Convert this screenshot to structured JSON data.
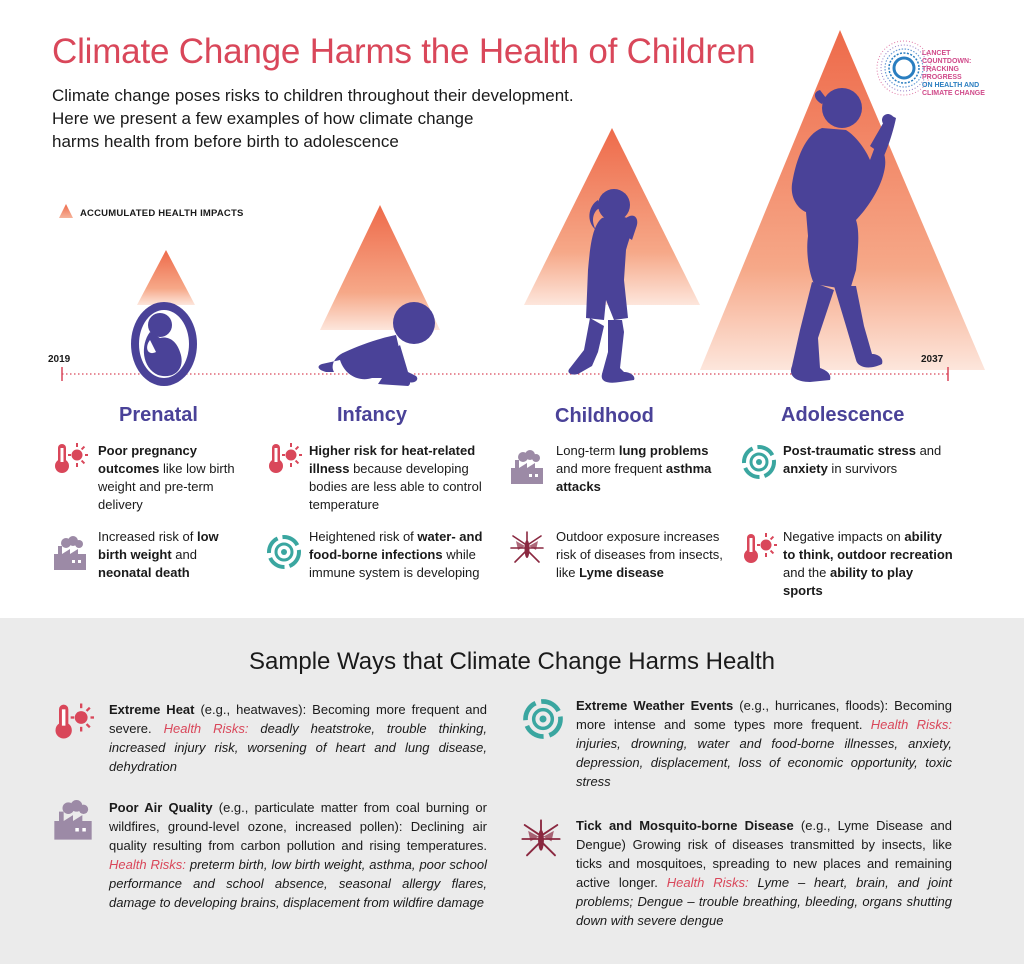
{
  "header": {
    "title": "Climate Change Harms the Health of Children",
    "intro_lines": [
      "Climate change poses risks to children throughout their development.",
      "Here we present a few examples of how climate change",
      "harms health from before birth to adolescence"
    ],
    "logo_text": [
      "LANCET COUNTDOWN:",
      "TRACKING PROGRESS",
      "ON HEALTH AND",
      "CLIMATE CHANGE"
    ]
  },
  "legend": {
    "label": "ACCUMULATED HEALTH  IMPACTS"
  },
  "timeline": {
    "start_year": "2019",
    "end_year": "2037"
  },
  "stages": [
    {
      "name": "Prenatal",
      "items": [
        {
          "icon": "thermometer-sun-icon",
          "parts": [
            [
              "Poor pregnancy outcomes",
              true
            ],
            [
              " like low birth weight  and pre-term delivery",
              false
            ]
          ]
        },
        {
          "icon": "factory-smoke-icon",
          "parts": [
            [
              "Increased risk of ",
              false
            ],
            [
              "low birth weight",
              true
            ],
            [
              " and ",
              false
            ],
            [
              "neonatal death",
              true
            ]
          ]
        }
      ]
    },
    {
      "name": "Infancy",
      "items": [
        {
          "icon": "thermometer-sun-icon",
          "parts": [
            [
              "Higher risk for heat-related illness",
              true
            ],
            [
              " because developing bodies are less able to control temperature",
              false
            ]
          ]
        },
        {
          "icon": "hurricane-icon",
          "parts": [
            [
              "Heightened risk of ",
              false
            ],
            [
              "water- and food-borne infections",
              true
            ],
            [
              " while immune system is developing",
              false
            ]
          ]
        }
      ]
    },
    {
      "name": "Childhood",
      "items": [
        {
          "icon": "factory-smoke-icon",
          "parts": [
            [
              "Long-term ",
              false
            ],
            [
              "lung problems",
              true
            ],
            [
              " and more frequent ",
              false
            ],
            [
              "asthma attacks",
              true
            ]
          ]
        },
        {
          "icon": "mosquito-icon",
          "parts": [
            [
              "Outdoor exposure increases risk of diseases from insects, like ",
              false
            ],
            [
              "Lyme disease",
              true
            ]
          ]
        }
      ]
    },
    {
      "name": "Adolescence",
      "items": [
        {
          "icon": "hurricane-icon",
          "parts": [
            [
              "Post-traumatic stress",
              true
            ],
            [
              " and ",
              false
            ],
            [
              "anxiety",
              true
            ],
            [
              " in survivors",
              false
            ]
          ]
        },
        {
          "icon": "thermometer-sun-icon",
          "parts": [
            [
              "Negative impacts on ",
              false
            ],
            [
              "ability to think, outdoor recreation",
              true
            ],
            [
              " and the ",
              false
            ],
            [
              "ability to play sports",
              true
            ]
          ]
        }
      ]
    }
  ],
  "sample": {
    "title": "Sample Ways that Climate Change Harms Health",
    "risk_label": "Health Risks:",
    "entries": [
      {
        "icon": "thermometer-sun-icon",
        "heading": "Extreme Heat",
        "lead": " (e.g., heatwaves): Becoming more frequent and severe. ",
        "risks": " deadly heatstroke, trouble thinking, increased injury risk, worsening of heart and lung disease, dehydration"
      },
      {
        "icon": "factory-smoke-icon",
        "heading": "Poor Air Quality",
        "lead": " (e.g., particulate matter from coal burning or wildfires, ground-level ozone, increased pollen): Declining air quality resulting from carbon pollution and rising temperatures. ",
        "risks": " preterm birth, low birth weight, asthma, poor school performance and school absence, seasonal allergy flares, damage to developing brains, displacement from wildfire damage"
      },
      {
        "icon": "hurricane-icon",
        "heading": "Extreme Weather Events",
        "lead": " (e.g., hurricanes, floods): Becoming more intense and some types more frequent. ",
        "risks": " injuries, drowning, water and food-borne illnesses, anxiety, depression, displacement, loss of economic opportunity, toxic stress"
      },
      {
        "icon": "mosquito-icon",
        "heading": "Tick and Mosquito-borne Disease",
        "lead": " (e.g., Lyme Disease and Dengue) Growing risk of diseases transmitted by insects, like ticks and mosquitoes, spreading to new places and remaining active longer. ",
        "risks": " Lyme – heart, brain, and joint problems; Dengue – trouble breathing, bleeding, organs shutting down with severe dengue"
      }
    ]
  },
  "colors": {
    "title_red": "#d9475a",
    "purple": "#4a4298",
    "teal": "#3aa6a0",
    "factory_mauve": "#9c8aa6",
    "mosquito_maroon": "#8a2840",
    "peach": "#f28a6a"
  }
}
